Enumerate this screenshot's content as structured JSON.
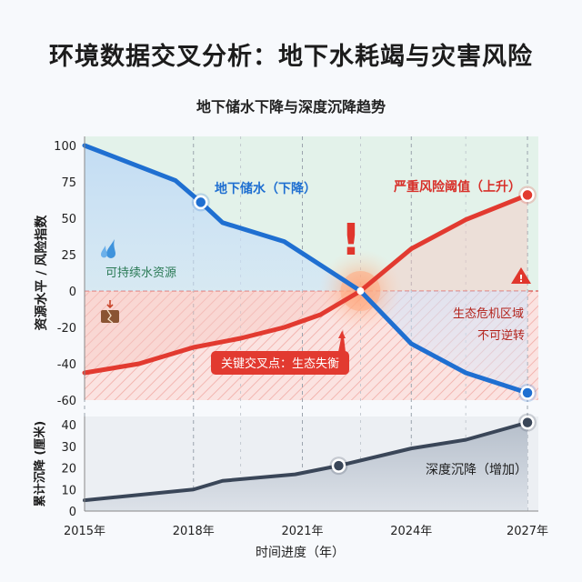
{
  "header": {
    "title": "环境数据交叉分析：地下水耗竭与灾害风险",
    "subtitle": "地下储水下降与深度沉降趋势"
  },
  "chart_data": [
    {
      "type": "line",
      "title": "地下储水下降与深度沉降趋势",
      "ylabel": "资源水平 / 风险指数",
      "ylim": [
        -60,
        100
      ],
      "yticks": [
        100,
        75,
        50,
        25,
        0,
        -20,
        -40,
        -60
      ],
      "xlim": [
        2015,
        2027.5
      ],
      "grid": true,
      "series": [
        {
          "name": "地下储水（下降）",
          "color": "#1f6fd1",
          "x": [
            2015,
            2017.5,
            2018.2,
            2018.8,
            2020.5,
            2022.6,
            2024,
            2025.5,
            2027.2
          ],
          "values": [
            100,
            76,
            61,
            47,
            34,
            0,
            -29,
            -45,
            -56
          ]
        },
        {
          "name": "严重风险阈值（上升）",
          "color": "#e23a30",
          "x": [
            2015,
            2016.5,
            2018,
            2019.3,
            2020.5,
            2021.5,
            2022.6,
            2024,
            2025.5,
            2027.2
          ],
          "values": [
            -45,
            -40,
            -31,
            -26,
            -20,
            -13,
            0,
            29,
            49,
            66
          ]
        }
      ],
      "annotations": {
        "safe_zone": "可持续水资源",
        "danger_zone_line1": "生态危机区域",
        "danger_zone_line2": "不可逆转",
        "crossover": "关键交叉点：生态失衡",
        "exclamation": "!"
      },
      "colors": {
        "safe_zone": "#e3f2ea",
        "danger_zone": "#fbe3e1",
        "blue": "#1f6fd1",
        "red": "#e23a30"
      }
    },
    {
      "type": "area",
      "ylabel": "累计沉降 (厘米)",
      "ylim": [
        0,
        45
      ],
      "yticks": [
        40,
        30,
        20,
        10,
        0
      ],
      "xlabel": "时间进度（年）",
      "xticks": [
        "2015年",
        "2018年",
        "2021年",
        "2024年",
        "2027年"
      ],
      "xtick_values": [
        2015,
        2018,
        2021,
        2024,
        2027.2
      ],
      "series": [
        {
          "name": "深度沉降（增加）",
          "color": "#3a4658",
          "x": [
            2015,
            2018,
            2018.8,
            2020.8,
            2022,
            2024,
            2025.5,
            2027.2
          ],
          "values": [
            5,
            10,
            14,
            17,
            21,
            29,
            33,
            41
          ]
        }
      ]
    }
  ]
}
